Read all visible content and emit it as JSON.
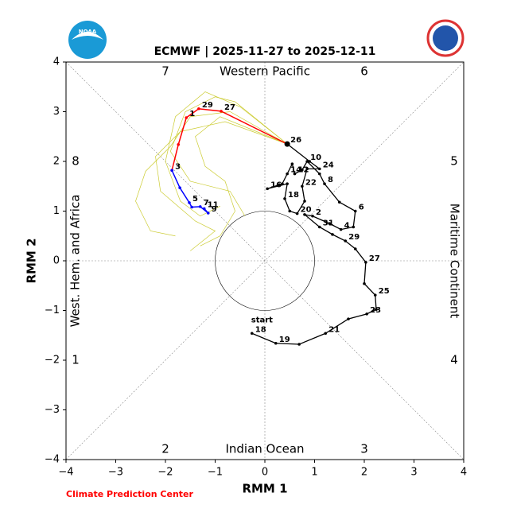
{
  "chart_data": {
    "type": "phase",
    "title": "ECMWF | 2025-11-27 to 2025-12-11",
    "x_label": "RMM 1",
    "y_label": "RMM 2",
    "footer": "Climate Prediction Center",
    "logo_text": "NOAA",
    "xlim": [
      -4,
      4
    ],
    "ylim": [
      -4,
      4
    ],
    "xticks": [
      {
        "value": -4,
        "label": "−4"
      },
      {
        "value": -3,
        "label": "−3"
      },
      {
        "value": -2,
        "label": "−2"
      },
      {
        "value": -1,
        "label": "−1"
      },
      0,
      1,
      2,
      3,
      4
    ],
    "yticks": [
      {
        "value": -4,
        "label": "−4"
      },
      {
        "value": -3,
        "label": "−3"
      },
      {
        "value": -2,
        "label": "−2"
      },
      {
        "value": -1,
        "label": "−1"
      },
      0,
      1,
      2,
      3,
      4
    ],
    "circle_radius": 1,
    "phases": [
      "1",
      "2",
      "3",
      "4",
      "5",
      "6",
      "7",
      "8"
    ],
    "regions": [
      "Western Pacific",
      "Indian Ocean",
      "West. Hem. and Africa",
      "Maritime Continent"
    ],
    "start_label": "start",
    "observed": {
      "color": "#000000",
      "x": [
        -0.26,
        0.22,
        0.69,
        1.22,
        1.68,
        2.05,
        2.24,
        2.22,
        2.0,
        2.03,
        1.82,
        1.62,
        1.36,
        1.1,
        0.8,
        0.96,
        1.3,
        1.53,
        1.78,
        1.82,
        1.5,
        1.2,
        1.1,
        0.85,
        0.75,
        0.6,
        0.55,
        0.45,
        0.35,
        0.05,
        0.45,
        0.4,
        0.5,
        0.65,
        0.8,
        0.75,
        0.85,
        1.1,
        0.9,
        0.45
      ],
      "y": [
        -1.46,
        -1.66,
        -1.68,
        -1.46,
        -1.17,
        -1.07,
        -0.98,
        -0.69,
        -0.46,
        -0.03,
        0.24,
        0.4,
        0.53,
        0.68,
        0.93,
        0.9,
        0.75,
        0.63,
        0.68,
        1.0,
        1.18,
        1.55,
        1.75,
        2.0,
        1.83,
        1.75,
        1.95,
        1.75,
        1.55,
        1.45,
        1.55,
        1.25,
        1.0,
        0.95,
        1.2,
        1.5,
        1.85,
        1.85,
        2.0,
        2.35
      ],
      "labels": [
        "18",
        "19",
        null,
        "21",
        null,
        "23",
        null,
        "25",
        null,
        "27",
        null,
        "29",
        null,
        "31",
        null,
        "2",
        null,
        "4",
        null,
        "6",
        null,
        "8",
        null,
        "10",
        null,
        "12",
        null,
        "14",
        null,
        "16",
        null,
        "18",
        null,
        "20",
        null,
        "22",
        null,
        "24",
        null,
        "26"
      ]
    },
    "forecast": {
      "color": "#ff0000",
      "x": [
        0.45,
        -0.88,
        -1.33,
        -1.58,
        -1.74,
        -1.87
      ],
      "y": [
        2.35,
        3.01,
        3.06,
        2.88,
        2.34,
        1.82
      ],
      "labels": [
        null,
        "27",
        "29",
        "1",
        null,
        "3"
      ]
    },
    "forecast_ext": {
      "color": "#0000ff",
      "x": [
        -1.87,
        -1.71,
        -1.52,
        -1.47,
        -1.3,
        -1.14,
        -1.22
      ],
      "y": [
        1.82,
        1.47,
        1.17,
        1.08,
        1.09,
        0.96,
        1.05
      ],
      "labels": [
        null,
        null,
        "5",
        null,
        "7",
        "9",
        "11"
      ]
    },
    "ensemble_color": "#cccc33",
    "ensemble": [
      {
        "x": [
          0.45,
          -0.5,
          -1.2,
          -1.8,
          -2.0,
          -1.7,
          -1.3,
          -0.9
        ],
        "y": [
          2.35,
          3.1,
          3.4,
          2.9,
          2.0,
          1.2,
          0.9,
          1.1
        ]
      },
      {
        "x": [
          0.45,
          -0.7,
          -1.5,
          -1.9,
          -2.4,
          -2.6,
          -2.3,
          -1.8
        ],
        "y": [
          2.35,
          3.0,
          2.9,
          2.3,
          1.8,
          1.2,
          0.6,
          0.5
        ]
      },
      {
        "x": [
          0.45,
          -0.9,
          -1.4,
          -1.2,
          -0.8,
          -0.6,
          -0.9,
          -1.3
        ],
        "y": [
          2.35,
          2.9,
          2.5,
          1.9,
          1.6,
          1.0,
          0.5,
          0.3
        ]
      },
      {
        "x": [
          0.45,
          -0.6,
          -1.0,
          -1.6,
          -1.9,
          -1.5,
          -0.7,
          -0.4
        ],
        "y": [
          2.35,
          3.2,
          3.3,
          3.0,
          2.2,
          1.6,
          1.4,
          0.9
        ]
      },
      {
        "x": [
          0.45,
          -0.8,
          -1.7,
          -2.2,
          -2.1,
          -1.4,
          -1.0,
          -1.5
        ],
        "y": [
          2.35,
          2.8,
          2.6,
          2.1,
          1.4,
          0.8,
          0.6,
          0.2
        ]
      }
    ]
  }
}
